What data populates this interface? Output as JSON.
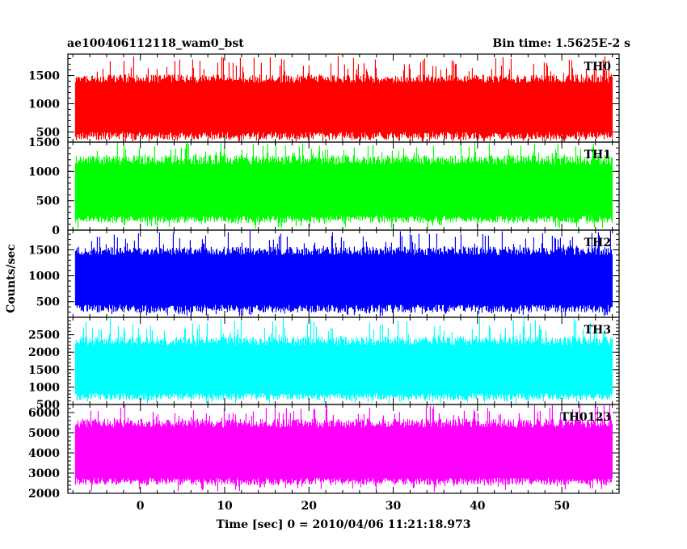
{
  "header": {
    "left_title": "ae100406112118_wam0_bst",
    "right_title": "Bin time: 1.5625E-2 s"
  },
  "chart_data": {
    "type": "line",
    "xlabel": "Time [sec] 0 = 2010/04/06 11:21:18.973",
    "ylabel": "Counts/sec",
    "xlim": [
      -8.6,
      56.8
    ],
    "x_ticks": [
      0,
      10,
      20,
      30,
      40,
      50
    ],
    "x_tick_labels": [
      "0",
      "10",
      "20",
      "30",
      "40",
      "50"
    ],
    "data_x_range": [
      -7.7,
      56.0
    ],
    "bin_time": 0.015625,
    "panels": [
      {
        "name": "TH0",
        "color": "#ff0000",
        "ylim": [
          320,
          1880
        ],
        "y_ticks": [
          500,
          1000,
          1500
        ],
        "y_tick_labels": [
          "500",
          "1000",
          "1500"
        ],
        "typical_range": [
          360,
          1520
        ],
        "max_count": 1850,
        "mean_count": 920
      },
      {
        "name": "TH1",
        "color": "#00ff00",
        "ylim": [
          0,
          1500
        ],
        "y_ticks": [
          0,
          500,
          1000,
          1500
        ],
        "y_tick_labels": [
          "0",
          "500",
          "1000",
          "1500"
        ],
        "typical_range": [
          120,
          1280
        ],
        "max_count": 1500,
        "mean_count": 620
      },
      {
        "name": "TH2",
        "color": "#0000ff",
        "ylim": [
          200,
          1880
        ],
        "y_ticks": [
          500,
          1000,
          1500
        ],
        "y_tick_labels": [
          "500",
          "1000",
          "1500"
        ],
        "typical_range": [
          290,
          1560
        ],
        "max_count": 1880,
        "mean_count": 900
      },
      {
        "name": "TH3",
        "color": "#00ffff",
        "ylim": [
          500,
          3000
        ],
        "y_ticks": [
          500,
          1000,
          1500,
          2000,
          2500
        ],
        "y_tick_labels": [
          "500",
          "1000",
          "1500",
          "2000",
          "2500"
        ],
        "typical_range": [
          620,
          2450
        ],
        "max_count": 3000,
        "mean_count": 1450
      },
      {
        "name": "TH0123",
        "color": "#ff00ff",
        "ylim": [
          2000,
          6400
        ],
        "y_ticks": [
          2000,
          3000,
          4000,
          5000,
          6000
        ],
        "y_tick_labels": [
          "2000",
          "3000",
          "4000",
          "5000",
          "6000"
        ],
        "typical_range": [
          2400,
          5700
        ],
        "max_count": 6400,
        "mean_count": 3900
      }
    ]
  }
}
